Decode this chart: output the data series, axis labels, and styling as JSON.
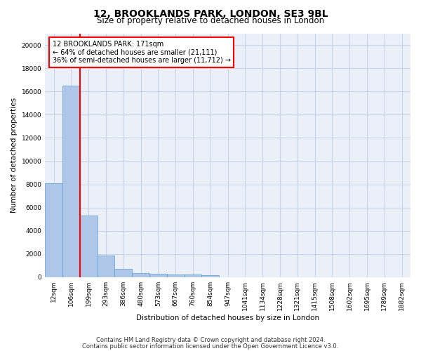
{
  "title": "12, BROOKLANDS PARK, LONDON, SE3 9BL",
  "subtitle": "Size of property relative to detached houses in London",
  "xlabel": "Distribution of detached houses by size in London",
  "ylabel": "Number of detached properties",
  "categories": [
    "12sqm",
    "106sqm",
    "199sqm",
    "293sqm",
    "386sqm",
    "480sqm",
    "573sqm",
    "667sqm",
    "760sqm",
    "854sqm",
    "947sqm",
    "1041sqm",
    "1134sqm",
    "1228sqm",
    "1321sqm",
    "1415sqm",
    "1508sqm",
    "1602sqm",
    "1695sqm",
    "1789sqm",
    "1882sqm"
  ],
  "values": [
    8100,
    16500,
    5300,
    1850,
    700,
    350,
    270,
    230,
    210,
    170,
    0,
    0,
    0,
    0,
    0,
    0,
    0,
    0,
    0,
    0,
    0
  ],
  "bar_color": "#aec6e8",
  "bar_edge_color": "#5b9bd5",
  "red_line_x": 1.5,
  "highlight_color": "#ff0000",
  "annotation_text_line1": "12 BROOKLANDS PARK: 171sqm",
  "annotation_text_line2": "← 64% of detached houses are smaller (21,111)",
  "annotation_text_line3": "36% of semi-detached houses are larger (11,712) →",
  "annotation_box_color": "#ff0000",
  "ylim": [
    0,
    21000
  ],
  "yticks": [
    0,
    2000,
    4000,
    6000,
    8000,
    10000,
    12000,
    14000,
    16000,
    18000,
    20000
  ],
  "grid_color": "#c8d4e8",
  "bg_color": "#eaeff8",
  "footer_line1": "Contains HM Land Registry data © Crown copyright and database right 2024.",
  "footer_line2": "Contains public sector information licensed under the Open Government Licence v3.0.",
  "title_fontsize": 10,
  "subtitle_fontsize": 8.5,
  "axis_label_fontsize": 7.5,
  "tick_fontsize": 6.5,
  "annotation_fontsize": 7,
  "footer_fontsize": 6
}
